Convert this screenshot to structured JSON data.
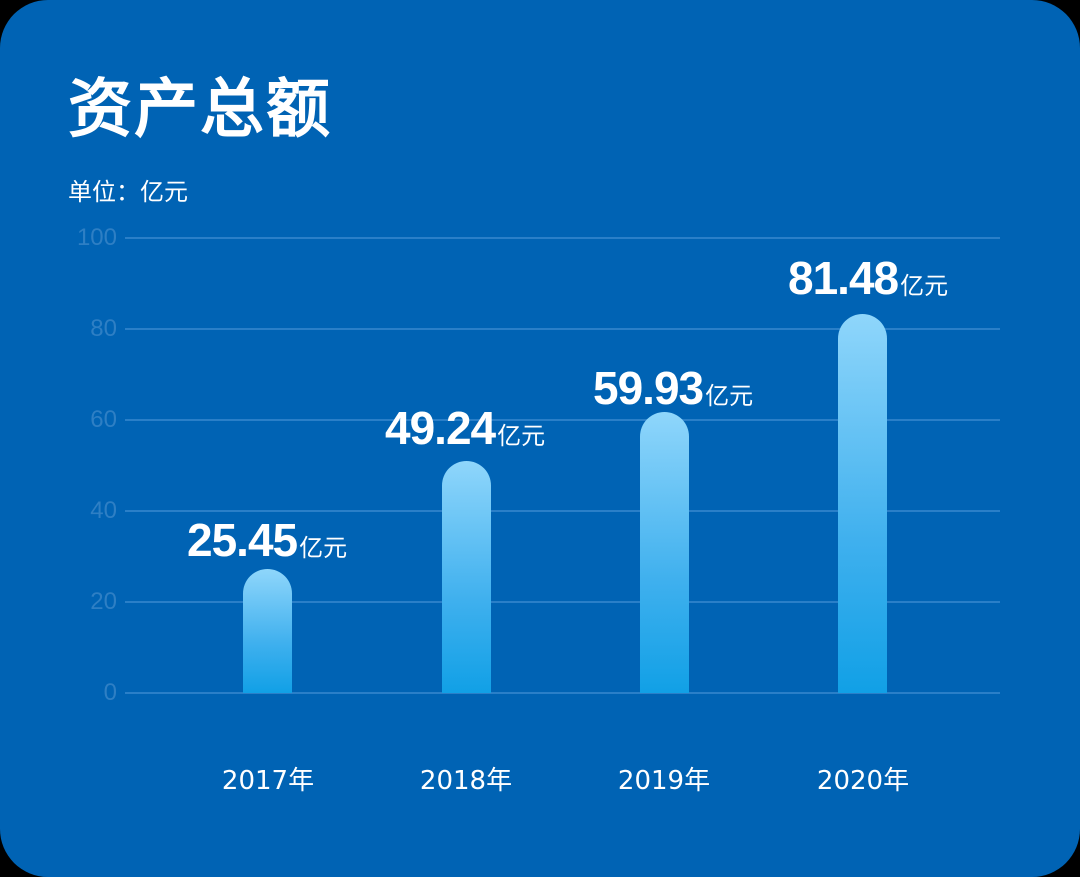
{
  "title": "资产总额",
  "unit_label": "单位：亿元",
  "colors": {
    "background": "#0063b4",
    "gridline": "#2a7fc8",
    "tick": "#2e7fc4",
    "bar_top": "#8fd6fb",
    "bar_bottom": "#11a0e6",
    "text": "#ffffff"
  },
  "chart_data": {
    "type": "bar",
    "title": "资产总额",
    "subtitle": "单位：亿元",
    "categories": [
      "2017年",
      "2018年",
      "2019年",
      "2020年"
    ],
    "values": [
      25.45,
      49.24,
      59.93,
      81.48
    ],
    "value_labels": [
      "25.45",
      "49.24",
      "59.93",
      "81.48"
    ],
    "value_unit": "亿元",
    "xlabel": "",
    "ylabel": "",
    "ylim": [
      0,
      100
    ],
    "yticks": [
      "100",
      "80",
      "60",
      "40",
      "20",
      "0"
    ],
    "grid": true,
    "legend": null
  }
}
